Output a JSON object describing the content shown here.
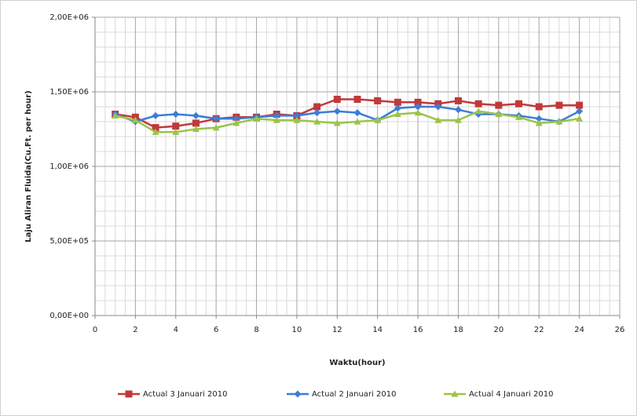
{
  "chart_data": {
    "type": "line",
    "x_label": "Waktu(hour)",
    "y_label": "Laju Aliran Fluida(Cu.Ft. per hour)",
    "x": [
      1,
      2,
      3,
      4,
      5,
      6,
      7,
      8,
      9,
      10,
      11,
      12,
      13,
      14,
      15,
      16,
      17,
      18,
      19,
      20,
      21,
      22,
      23,
      24
    ],
    "series": [
      {
        "name": "Actual 3 Januari 2010",
        "color": "#c0393b",
        "marker": "square",
        "values": [
          1350000,
          1330000,
          1260000,
          1270000,
          1290000,
          1320000,
          1330000,
          1330000,
          1350000,
          1340000,
          1400000,
          1450000,
          1450000,
          1440000,
          1430000,
          1430000,
          1420000,
          1440000,
          1420000,
          1410000,
          1420000,
          1400000,
          1410000,
          1410000
        ]
      },
      {
        "name": "Actual 2 Januari 2010",
        "color": "#3b7dd8",
        "marker": "diamond",
        "values": [
          1350000,
          1300000,
          1340000,
          1350000,
          1340000,
          1320000,
          1320000,
          1330000,
          1340000,
          1340000,
          1360000,
          1370000,
          1360000,
          1310000,
          1390000,
          1400000,
          1400000,
          1380000,
          1350000,
          1350000,
          1340000,
          1320000,
          1300000,
          1370000
        ]
      },
      {
        "name": "Actual 4 Januari 2010",
        "color": "#9bc34a",
        "marker": "triangle",
        "values": [
          1340000,
          1310000,
          1230000,
          1230000,
          1250000,
          1260000,
          1290000,
          1320000,
          1310000,
          1310000,
          1300000,
          1290000,
          1300000,
          1310000,
          1350000,
          1360000,
          1310000,
          1310000,
          1370000,
          1350000,
          1330000,
          1290000,
          1300000,
          1320000
        ]
      }
    ],
    "xlim": [
      0,
      26
    ],
    "xticks": [
      0,
      2,
      4,
      6,
      8,
      10,
      12,
      14,
      16,
      18,
      20,
      22,
      24,
      26
    ],
    "ylim": [
      0,
      2000000
    ],
    "yticks": [
      {
        "value": 0,
        "label": "0,00E+00"
      },
      {
        "value": 500000,
        "label": "5,00E+05"
      },
      {
        "value": 1000000,
        "label": "1,00E+06"
      },
      {
        "value": 1500000,
        "label": "1,50E+06"
      },
      {
        "value": 2000000,
        "label": "2,00E+06"
      }
    ],
    "grid": true,
    "legend": "bottom"
  }
}
